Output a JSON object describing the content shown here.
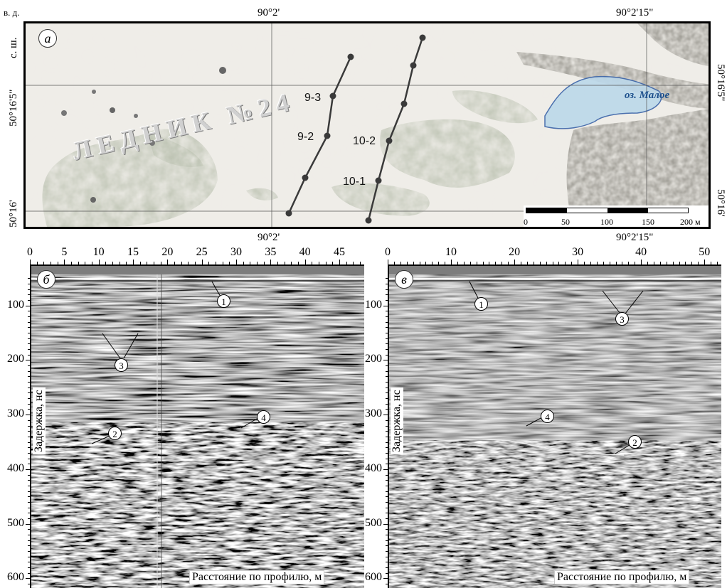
{
  "map": {
    "corner_label": "в. д.",
    "lat_axis_label": "с. ш.",
    "lon_top": [
      "90°2'",
      "90°2'15\""
    ],
    "lon_bottom": [
      "90°2'",
      "90°2'15\""
    ],
    "lat_labels": [
      "50°16'5\"",
      "50°16'"
    ],
    "panel_letter": "а",
    "glacier_label": "ЛЕДНИК №24",
    "lake_label": "оз.  Малое",
    "profiles": [
      {
        "label": "9-3"
      },
      {
        "label": "9-2"
      },
      {
        "label": "10-2"
      },
      {
        "label": "10-1"
      }
    ],
    "scale": {
      "ticks": [
        "0",
        "50",
        "100",
        "150",
        "200 м"
      ]
    }
  },
  "radargram_b": {
    "panel_letter": "б",
    "x_ticks": [
      "0",
      "5",
      "10",
      "15",
      "20",
      "25",
      "30",
      "35",
      "40",
      "45"
    ],
    "x_max": 48,
    "y_ticks": [
      "100",
      "200",
      "300",
      "400",
      "500",
      "600"
    ],
    "y_range": [
      25,
      615
    ],
    "xlabel": "Расстояние по профилю, м",
    "ylabel": "Задержка, нс",
    "markers": [
      "1",
      "3",
      "2",
      "4"
    ]
  },
  "radargram_v": {
    "panel_letter": "в",
    "x_ticks": [
      "0",
      "10",
      "20",
      "30",
      "40",
      "50"
    ],
    "x_max": 52,
    "y_ticks": [
      "100",
      "200",
      "300",
      "400",
      "500",
      "600"
    ],
    "y_range": [
      25,
      615
    ],
    "xlabel": "Расстояние по профилю, м",
    "ylabel": "Задержка, нс",
    "markers": [
      "1",
      "3",
      "4",
      "2"
    ]
  }
}
